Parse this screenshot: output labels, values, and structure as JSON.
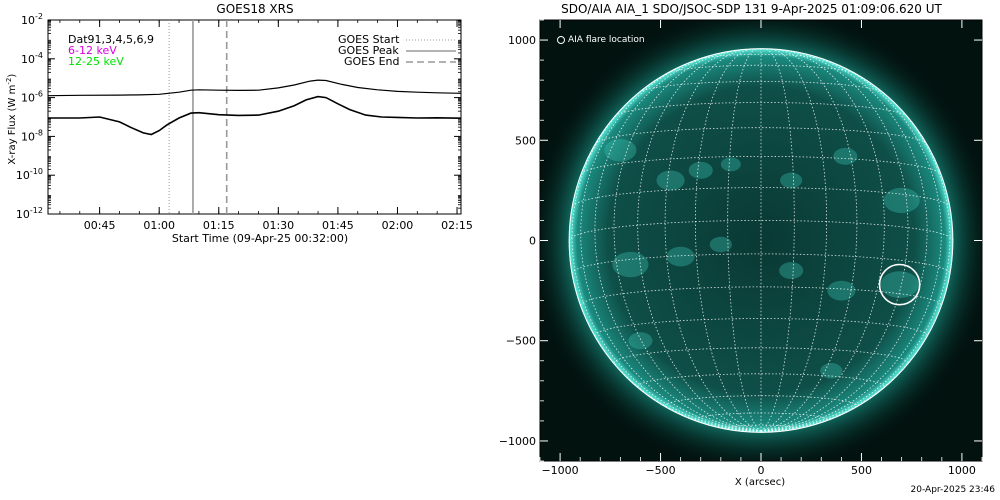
{
  "chart_data": [
    {
      "type": "line",
      "title": "GOES18 XRS",
      "xlabel": "Start Time (09-Apr-25 00:32:00)",
      "ylabel": "X-ray Flux (W m",
      "ylabel_sup": "-2",
      "ylabel_tail": ")",
      "yscale": "log",
      "ylim_exp": [
        -12,
        -2
      ],
      "ytick_exponents": [
        -12,
        -10,
        -8,
        -6,
        -4,
        -2
      ],
      "xlim": [
        "00:32:00",
        "02:16:00"
      ],
      "xticks": [
        "00:45",
        "01:00",
        "01:15",
        "01:30",
        "01:45",
        "02:00",
        "02:15"
      ],
      "info_lines": [
        {
          "text": "Dat91,3,4,5,6,9",
          "color": "#000000"
        },
        {
          "text": "6-12 keV",
          "color": "#e000e0"
        },
        {
          "text": "12-25 keV",
          "color": "#00e000"
        }
      ],
      "legend": [
        {
          "label": "GOES Start",
          "style": "dotted",
          "time": "01:02:30"
        },
        {
          "label": "GOES Peak",
          "style": "solid",
          "time": "01:08:30"
        },
        {
          "label": "GOES End",
          "style": "dashed",
          "time": "01:17:00"
        }
      ],
      "series": [
        {
          "color": "#000000",
          "x": [
            "00:32",
            "00:40",
            "00:50",
            "00:55",
            "01:00",
            "01:05",
            "01:08",
            "01:10",
            "01:15",
            "01:20",
            "01:25",
            "01:30",
            "01:34",
            "01:38",
            "01:40",
            "01:42",
            "01:46",
            "01:50",
            "01:55",
            "02:00",
            "02:05",
            "02:10",
            "02:16"
          ],
          "log_values": [
            -5.9,
            -5.88,
            -5.87,
            -5.86,
            -5.83,
            -5.72,
            -5.62,
            -5.6,
            -5.62,
            -5.63,
            -5.62,
            -5.5,
            -5.35,
            -5.15,
            -5.1,
            -5.12,
            -5.32,
            -5.48,
            -5.6,
            -5.68,
            -5.72,
            -5.75,
            -5.78
          ]
        },
        {
          "color": "#000000",
          "x": [
            "00:32",
            "00:40",
            "00:45",
            "00:50",
            "00:53",
            "00:56",
            "00:58",
            "01:00",
            "01:02",
            "01:05",
            "01:08",
            "01:10",
            "01:15",
            "01:20",
            "01:25",
            "01:30",
            "01:34",
            "01:37",
            "01:40",
            "01:42",
            "01:45",
            "01:48",
            "01:52",
            "01:56",
            "02:00",
            "02:05",
            "02:10",
            "02:16"
          ],
          "log_values": [
            -7.05,
            -7.05,
            -7.0,
            -7.25,
            -7.55,
            -7.82,
            -7.9,
            -7.7,
            -7.4,
            -7.05,
            -6.8,
            -6.78,
            -6.88,
            -6.92,
            -6.9,
            -6.7,
            -6.42,
            -6.12,
            -5.95,
            -6.0,
            -6.32,
            -6.62,
            -6.9,
            -7.0,
            -7.02,
            -7.05,
            -7.04,
            -7.06
          ]
        }
      ]
    },
    {
      "type": "image",
      "title": "SDO/AIA AIA_1 SDO/JSOC-SDP 131  9-Apr-2025 01:09:06.620 UT",
      "xlabel": "X (arcsec)",
      "xlim": [
        -1100,
        1100
      ],
      "ylim": [
        -1100,
        1100
      ],
      "xticks": [
        -1000,
        -500,
        0,
        500,
        1000
      ],
      "yticks": [
        1000,
        500,
        0,
        -500,
        -1000
      ],
      "legend": [
        {
          "label": "AIA flare location",
          "marker": "circle"
        }
      ],
      "flare_location": {
        "x": 690,
        "y": -220,
        "radius": 100
      },
      "solar_radius_arcsec": 955,
      "grid_step_deg": 10,
      "colors": {
        "background": "#02120f",
        "disk": "#0e4f48",
        "limb": "#5ff0e0",
        "grid": "#ffffff"
      }
    }
  ],
  "footer_timestamp": "20-Apr-2025 23:46"
}
